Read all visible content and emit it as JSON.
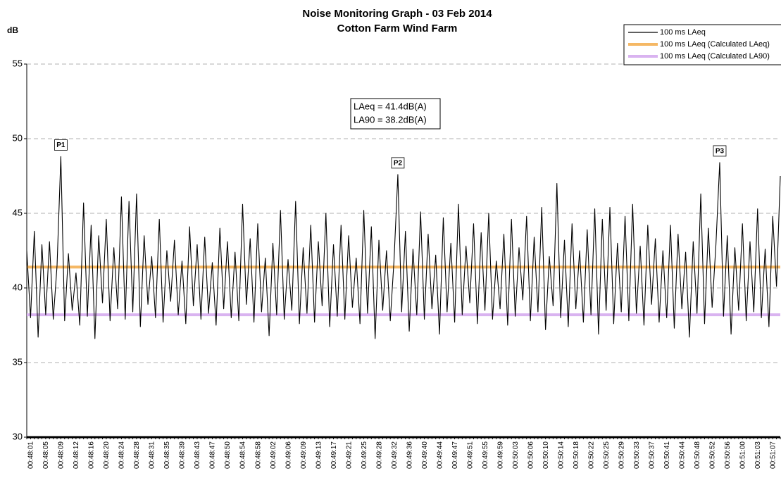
{
  "chart_data": {
    "type": "line",
    "title": "Noise Monitoring Graph - 03 Feb 2014",
    "subtitle": "Cotton Farm Wind Farm",
    "y_label": "dB",
    "ylim": [
      30,
      55
    ],
    "yticks": [
      30,
      35,
      40,
      45,
      50,
      55
    ],
    "grid": true,
    "legend": "top-right",
    "annotation": [
      "LAeq = 41.4dB(A)",
      "LA90 = 38.2dB(A)"
    ],
    "peak_labels": [
      "P1",
      "P2",
      "P3"
    ],
    "categories": [
      "00:48:01",
      null,
      null,
      null,
      "00:48:05",
      null,
      null,
      null,
      "00:48:09",
      null,
      null,
      null,
      "00:48:12",
      null,
      null,
      null,
      "00:48:16",
      null,
      null,
      null,
      "00:48:20",
      null,
      null,
      null,
      "00:48:24",
      null,
      null,
      null,
      "00:48:28",
      null,
      null,
      null,
      "00:48:31",
      null,
      null,
      null,
      "00:48:35",
      null,
      null,
      null,
      "00:48:39",
      null,
      null,
      null,
      "00:48:43",
      null,
      null,
      null,
      "00:48:47",
      null,
      null,
      null,
      "00:48:50",
      null,
      null,
      null,
      "00:48:54",
      null,
      null,
      null,
      "00:48:58",
      null,
      null,
      null,
      "00:49:02",
      null,
      null,
      null,
      "00:49:06",
      null,
      null,
      null,
      "00:49:09",
      null,
      null,
      null,
      "00:49:13",
      null,
      null,
      null,
      "00:49:17",
      null,
      null,
      null,
      "00:49:21",
      null,
      null,
      null,
      "00:49:25",
      null,
      null,
      null,
      "00:49:28",
      null,
      null,
      null,
      "00:49:32",
      null,
      null,
      null,
      "00:49:36",
      null,
      null,
      null,
      "00:49:40",
      null,
      null,
      null,
      "00:49:44",
      null,
      null,
      null,
      "00:49:47",
      null,
      null,
      null,
      "00:49:51",
      null,
      null,
      null,
      "00:49:55",
      null,
      null,
      null,
      "00:49:59",
      null,
      null,
      null,
      "00:50:03",
      null,
      null,
      null,
      "00:50:06",
      null,
      null,
      null,
      "00:50:10",
      null,
      null,
      null,
      "00:50:14",
      null,
      null,
      null,
      "00:50:18",
      null,
      null,
      null,
      "00:50:22",
      null,
      null,
      null,
      "00:50:25",
      null,
      null,
      null,
      "00:50:29",
      null,
      null,
      null,
      "00:50:33",
      null,
      null,
      null,
      "00:50:37",
      null,
      null,
      null,
      "00:50:41",
      null,
      null,
      null,
      "00:50:44",
      null,
      null,
      null,
      "00:50:48",
      null,
      null,
      null,
      "00:50:52",
      null,
      null,
      null,
      "00:50:56",
      null,
      null,
      null,
      "00:51:00",
      null,
      null,
      null,
      "00:51:03",
      null,
      null,
      null,
      "00:51:07",
      null,
      null,
      null
    ],
    "series": [
      {
        "name": "100 ms LAeq",
        "color": "#000000",
        "values": [
          42.5,
          38.0,
          43.8,
          36.7,
          42.9,
          38.2,
          43.1,
          37.9,
          41.5,
          48.8,
          37.8,
          42.3,
          38.5,
          41.0,
          37.5,
          45.7,
          38.1,
          44.2,
          36.6,
          43.5,
          39.0,
          44.6,
          37.8,
          42.7,
          38.6,
          46.1,
          37.9,
          45.8,
          38.4,
          46.3,
          37.4,
          43.5,
          38.9,
          42.1,
          38.0,
          44.6,
          37.7,
          42.5,
          39.1,
          43.2,
          38.2,
          41.8,
          37.6,
          44.1,
          38.8,
          42.9,
          37.9,
          43.4,
          38.3,
          41.7,
          37.5,
          44.0,
          38.6,
          43.1,
          38.0,
          42.4,
          37.8,
          45.6,
          38.9,
          43.3,
          37.7,
          44.3,
          38.4,
          42.0,
          36.8,
          43.0,
          38.2,
          45.2,
          37.9,
          41.9,
          38.5,
          45.8,
          37.6,
          42.7,
          38.3,
          44.2,
          37.7,
          43.1,
          38.8,
          45.0,
          37.4,
          42.9,
          38.1,
          44.2,
          37.9,
          43.5,
          38.7,
          42.0,
          37.6,
          45.2,
          38.3,
          44.1,
          36.6,
          43.2,
          38.5,
          42.5,
          37.8,
          41.9,
          47.6,
          38.4,
          43.8,
          37.1,
          42.6,
          38.2,
          45.1,
          37.9,
          43.6,
          38.6,
          42.2,
          36.9,
          44.7,
          38.4,
          43.0,
          37.7,
          45.6,
          38.2,
          42.8,
          39.0,
          44.3,
          37.6,
          43.7,
          38.5,
          45.0,
          37.9,
          41.8,
          38.6,
          43.6,
          37.5,
          44.6,
          38.1,
          42.7,
          39.2,
          44.8,
          37.8,
          43.4,
          38.4,
          45.4,
          37.2,
          42.1,
          38.8,
          47.0,
          38.0,
          43.2,
          37.4,
          44.3,
          38.6,
          42.5,
          37.7,
          43.9,
          38.2,
          45.3,
          36.9,
          44.6,
          38.5,
          45.4,
          37.6,
          43.0,
          38.4,
          44.8,
          37.8,
          45.6,
          38.3,
          42.8,
          37.5,
          44.2,
          38.9,
          43.3,
          37.7,
          42.5,
          38.0,
          44.2,
          37.3,
          43.6,
          38.6,
          42.4,
          36.7,
          43.1,
          38.3,
          46.3,
          37.6,
          44.0,
          38.7,
          42.9,
          48.4,
          38.1,
          43.5,
          36.9,
          42.7,
          38.5,
          44.3,
          37.8,
          43.1,
          38.4,
          45.3,
          38.0,
          42.6,
          37.4,
          44.8,
          40.1,
          47.5
        ]
      }
    ],
    "reference_lines": [
      {
        "name": "100 ms LAeq (Calculated LAeq)",
        "color": "#f5b865",
        "value": 41.4
      },
      {
        "name": "100 ms LAeq (Calculated LA90)",
        "color": "#d9b3f0",
        "value": 38.2
      }
    ]
  }
}
